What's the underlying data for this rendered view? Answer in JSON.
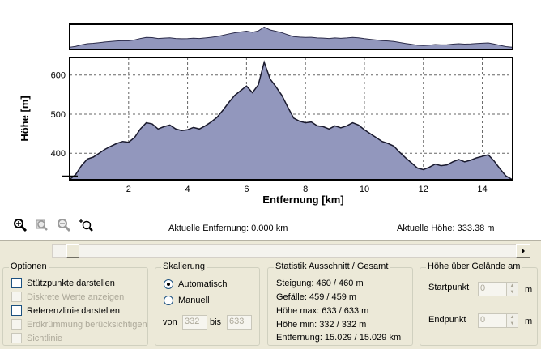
{
  "chart_data": [
    {
      "type": "area",
      "role": "overview",
      "xlim": [
        0,
        15.029
      ],
      "ylim": [
        300,
        650
      ],
      "series_ref": "profile"
    },
    {
      "type": "area",
      "xlabel": "Entfernung [km]",
      "ylabel": "Höhe [m]",
      "xlim": [
        0,
        15.029
      ],
      "ylim": [
        332,
        645
      ],
      "xticks": [
        "2",
        "4",
        "6",
        "8",
        "10",
        "12",
        "14"
      ],
      "xtick_values": [
        2,
        4,
        6,
        8,
        10,
        12,
        14
      ],
      "yticks": [
        "400",
        "500",
        "600"
      ],
      "ytick_values": [
        400,
        500,
        600
      ],
      "grid": true,
      "fill_color": "#9297bd",
      "x": [
        0.0,
        0.2,
        0.4,
        0.6,
        0.8,
        1.0,
        1.2,
        1.4,
        1.6,
        1.8,
        2.0,
        2.2,
        2.4,
        2.6,
        2.8,
        3.0,
        3.2,
        3.4,
        3.6,
        3.8,
        4.0,
        4.2,
        4.4,
        4.6,
        4.8,
        5.0,
        5.2,
        5.4,
        5.6,
        5.8,
        6.0,
        6.2,
        6.4,
        6.6,
        6.8,
        7.0,
        7.2,
        7.4,
        7.6,
        7.8,
        8.0,
        8.2,
        8.4,
        8.6,
        8.8,
        9.0,
        9.2,
        9.4,
        9.6,
        9.8,
        10.0,
        10.2,
        10.4,
        10.6,
        10.8,
        11.0,
        11.2,
        11.4,
        11.6,
        11.8,
        12.0,
        12.2,
        12.4,
        12.6,
        12.8,
        13.0,
        13.2,
        13.4,
        13.6,
        13.8,
        14.0,
        14.2,
        14.4,
        14.6,
        14.8,
        15.029
      ],
      "y": [
        333,
        345,
        368,
        385,
        390,
        400,
        410,
        418,
        425,
        430,
        428,
        440,
        462,
        478,
        475,
        462,
        468,
        472,
        462,
        458,
        460,
        466,
        462,
        470,
        480,
        492,
        510,
        530,
        548,
        560,
        572,
        555,
        575,
        633,
        590,
        570,
        548,
        518,
        490,
        482,
        478,
        480,
        470,
        468,
        462,
        470,
        465,
        470,
        478,
        472,
        460,
        450,
        440,
        430,
        425,
        418,
        402,
        388,
        375,
        362,
        358,
        364,
        372,
        368,
        370,
        378,
        384,
        378,
        382,
        388,
        392,
        396,
        380,
        360,
        342,
        332
      ]
    }
  ],
  "readouts": {
    "distance": "Aktuelle Entfernung: 0.000 km",
    "height": "Aktuelle Höhe: 333.38 m"
  },
  "icons": {
    "zoom_in": "zoom-in-icon",
    "zoom_area": "zoom-area-icon",
    "zoom_out": "zoom-out-icon",
    "zoom_fit": "zoom-fit-icon"
  },
  "options": {
    "title": "Optionen",
    "items": [
      {
        "label": "Stützpunkte darstellen",
        "enabled": true
      },
      {
        "label": "Diskrete Werte anzeigen",
        "enabled": false
      },
      {
        "label": "Referenzlinie darstellen",
        "enabled": true
      },
      {
        "label": "Erdkrümmung berücksichtigen",
        "enabled": false
      },
      {
        "label": "Sichtlinie",
        "enabled": false
      }
    ]
  },
  "scaling": {
    "title": "Skalierung",
    "auto_label": "Automatisch",
    "manual_label": "Manuell",
    "from_label": "von",
    "to_label": "bis",
    "from_value": "332",
    "to_value": "633"
  },
  "statistics": {
    "title": "Statistik   Ausschnitt / Gesamt",
    "lines": [
      "Steigung: 460 / 460 m",
      "Gefälle: 459 / 459 m",
      "Höhe max: 633 / 633 m",
      "Höhe min: 332 / 332 m",
      "Entfernung: 15.029 / 15.029 km"
    ]
  },
  "height_above": {
    "title": "Höhe über Gelände am",
    "start_label": "Startpunkt",
    "end_label": "Endpunkt",
    "start_value": "0",
    "end_value": "0",
    "unit": "m"
  }
}
